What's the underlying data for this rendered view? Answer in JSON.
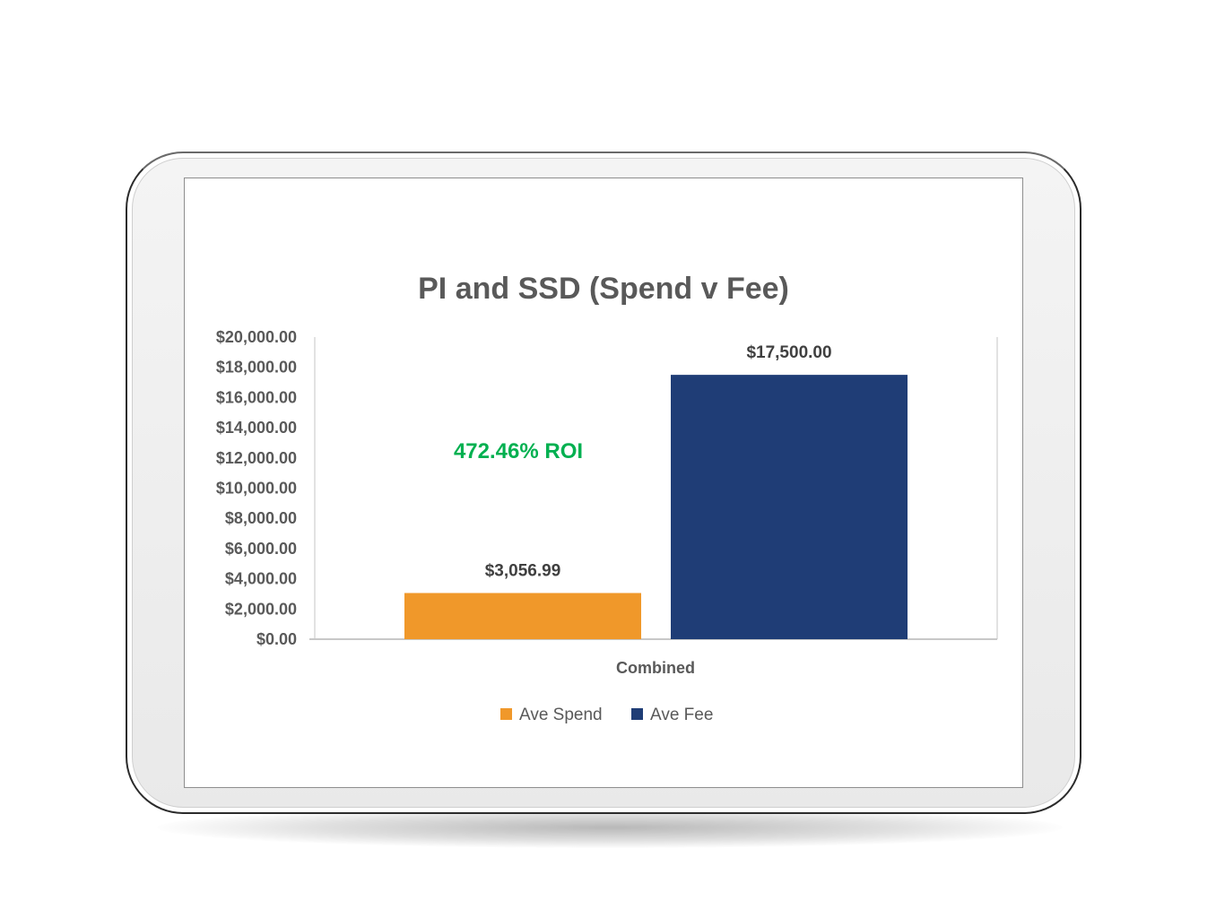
{
  "chart_data": {
    "type": "bar",
    "title": "PI and SSD (Spend v Fee)",
    "categories": [
      "Combined"
    ],
    "series": [
      {
        "name": "Ave Spend",
        "values": [
          3056.99
        ],
        "label": "$3,056.99",
        "color": "#f0982a"
      },
      {
        "name": "Ave Fee",
        "values": [
          17500.0
        ],
        "label": "$17,500.00",
        "color": "#1f3d76"
      }
    ],
    "ylim": [
      0,
      20000
    ],
    "y_ticks": [
      0,
      2000,
      4000,
      6000,
      8000,
      10000,
      12000,
      14000,
      16000,
      18000,
      20000
    ],
    "y_tick_labels": [
      "$0.00",
      "$2,000.00",
      "$4,000.00",
      "$6,000.00",
      "$8,000.00",
      "$10,000.00",
      "$12,000.00",
      "$14,000.00",
      "$16,000.00",
      "$18,000.00",
      "$20,000.00"
    ],
    "xlabel": "",
    "ylabel": "",
    "grid": false,
    "legend": "bottom",
    "annotation": {
      "text": "472.46% ROI",
      "color": "#00b050"
    }
  }
}
